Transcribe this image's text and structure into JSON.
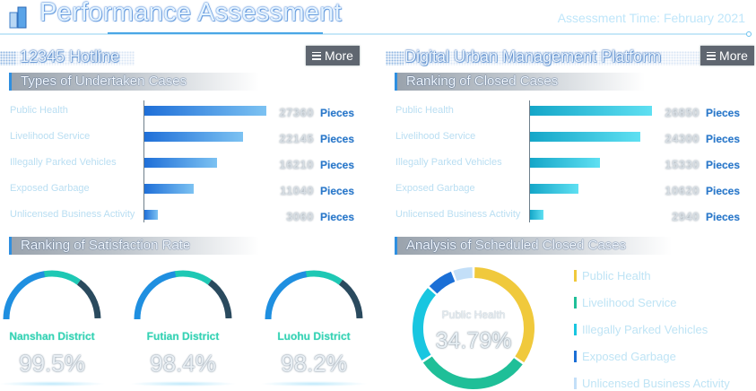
{
  "header": {
    "title": "Performance Assessment",
    "assessment_time": "Assessment Time: February 2021"
  },
  "left_panel": {
    "title": "12345 Hotline",
    "more_label": "More",
    "bar_section_title": "Types of  Undertaken Cases",
    "gauge_section_title": "Ranking of Satisfaction Rate"
  },
  "right_panel": {
    "title": "Digital Urban Management Platform",
    "more_label": "More",
    "bar_section_title": "Ranking of Closed Cases",
    "donut_section_title": "Analysis of Scheduled Closed Cases"
  },
  "chart_data": [
    {
      "type": "bar",
      "orientation": "horizontal",
      "title": "Types of  Undertaken Cases",
      "categories": [
        "Public Health",
        "Livelihood Service",
        "Illegally Parked Vehicles",
        "Exposed Garbage",
        "Unlicensed Business Activity"
      ],
      "values": [
        27360,
        22145,
        16210,
        11040,
        3060
      ],
      "value_labels": [
        "27360",
        "22145",
        "16210",
        "11040",
        "3060"
      ],
      "unit": "Pieces",
      "xlim": [
        0,
        27360
      ]
    },
    {
      "type": "bar",
      "orientation": "horizontal",
      "title": "Ranking of Closed Cases",
      "categories": [
        "Public Health",
        "Livelihood Service",
        "Illegally Parked Vehicles",
        "Exposed Garbage",
        "Unlicensed Business Activity"
      ],
      "values": [
        26850,
        24300,
        15330,
        10620,
        2940
      ],
      "value_labels": [
        "26850",
        "24300",
        "15330",
        "10620",
        "2940"
      ],
      "unit": "Pieces",
      "xlim": [
        0,
        26850
      ]
    },
    {
      "type": "gauge",
      "title": "Ranking of Satisfaction Rate",
      "items": [
        {
          "name": "Nanshan District",
          "value": 99.5,
          "label": "99.5%"
        },
        {
          "name": "Futian District",
          "value": 98.4,
          "label": "98.4%"
        },
        {
          "name": "Luohu District",
          "value": 98.2,
          "label": "98.2%"
        }
      ],
      "colors": {
        "start": "#1f8fe0",
        "mid": "#1ec8b4",
        "end": "#2a4a5e"
      }
    },
    {
      "type": "pie",
      "title": "Analysis of Scheduled Closed Cases",
      "center_label": "Public Health",
      "center_value": "34.79%",
      "slices": [
        {
          "name": "Public Health",
          "value": 34.79,
          "color": "#f0c93c"
        },
        {
          "name": "Livelihood Service",
          "value": 31.0,
          "color": "#1fbf98"
        },
        {
          "name": "Illegally Parked Vehicles",
          "value": 21.0,
          "color": "#19c6e0"
        },
        {
          "name": "Exposed Garbage",
          "value": 7.5,
          "color": "#1b6fd6"
        },
        {
          "name": "Unlicensed Business Activity",
          "value": 5.71,
          "color": "#c3dff8"
        }
      ]
    }
  ]
}
